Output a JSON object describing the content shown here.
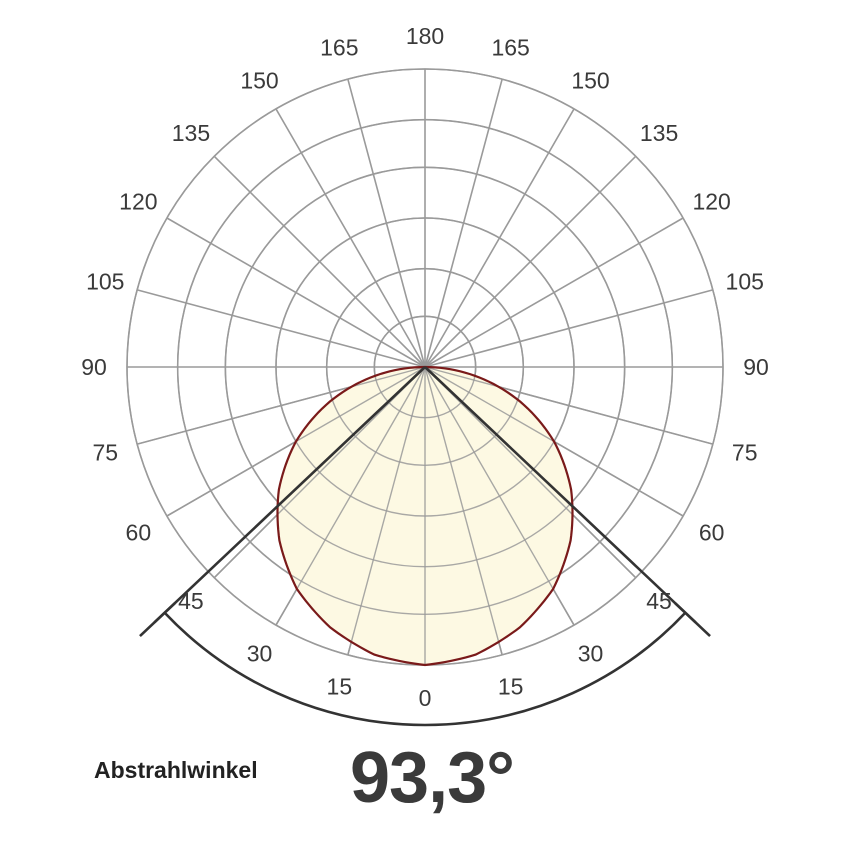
{
  "chart_data": {
    "type": "polar",
    "title": "",
    "angle_ticks_left": [
      0,
      15,
      30,
      45,
      60,
      75,
      90,
      105,
      120,
      135,
      150,
      165,
      180
    ],
    "angle_ticks_right": [
      15,
      30,
      45,
      60,
      75,
      90,
      105,
      120,
      135,
      150,
      165
    ],
    "radial_rings": [
      0.17,
      0.33,
      0.5,
      0.67,
      0.83,
      1.0
    ],
    "radial_tick_labels": "none",
    "beam_angle_deg": 93.3,
    "series": [
      {
        "kind": "luminous-intensity-curve",
        "angle_deg": [
          0,
          10,
          20,
          30,
          40,
          50,
          60,
          70,
          80,
          90
        ],
        "relative_intensity": [
          1.0,
          0.98,
          0.93,
          0.86,
          0.76,
          0.64,
          0.5,
          0.34,
          0.17,
          0.0
        ],
        "fill": "#fdf9e3",
        "stroke": "#7a1a1a"
      }
    ],
    "colors": {
      "grid": "#9a9a9a",
      "beam_lines": "#333333",
      "labels": "#3a3a3a"
    }
  },
  "caption": {
    "label": "Abstrahlwinkel",
    "value": "93,3°"
  }
}
